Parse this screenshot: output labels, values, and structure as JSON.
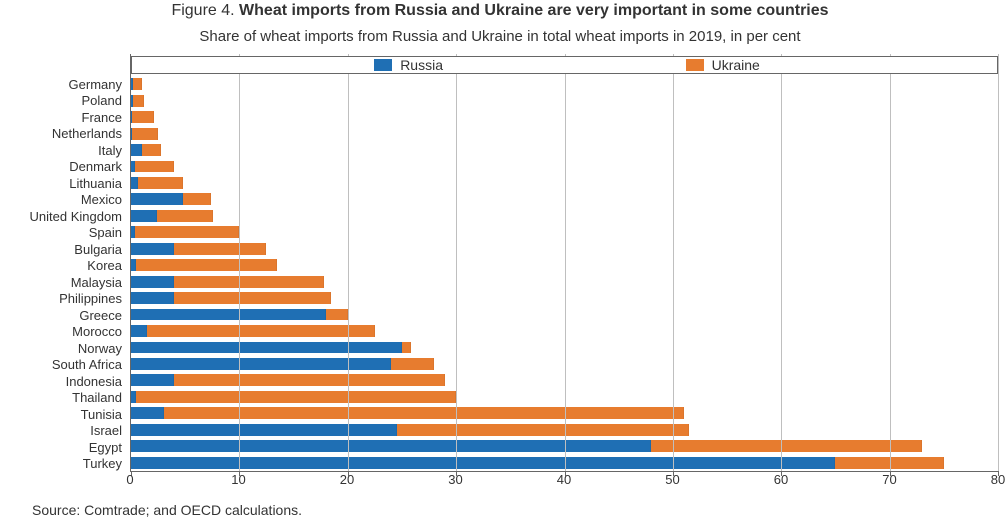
{
  "figure_label": "Figure 4.",
  "figure_title": "Wheat imports from Russia and Ukraine are very important in some countries",
  "subtitle": "Share of wheat imports from Russia and Ukraine in total wheat imports in 2019, in per cent",
  "source": "Source: Comtrade; and OECD calculations.",
  "chart": {
    "type": "stacked-horizontal-bar",
    "xlim": [
      0,
      80
    ],
    "xtick_step": 10,
    "xticks": [
      0,
      10,
      20,
      30,
      40,
      50,
      60,
      70,
      80
    ],
    "background_color": "#ffffff",
    "grid_color": "#bfbfbf",
    "axis_color": "#666666",
    "label_fontsize": 13,
    "title_fontsize": 16,
    "bar_height_ratio": 0.72,
    "series": [
      {
        "key": "russia",
        "label": "Russia",
        "color": "#1f6fb4"
      },
      {
        "key": "ukraine",
        "label": "Ukraine",
        "color": "#e77c2f"
      }
    ],
    "legend": {
      "position": "top-inside",
      "border_color": "#666666"
    },
    "categories": [
      {
        "label": "Germany",
        "russia": 0.2,
        "ukraine": 0.8
      },
      {
        "label": "Poland",
        "russia": 0.2,
        "ukraine": 1.0
      },
      {
        "label": "France",
        "russia": 0.0,
        "ukraine": 2.0
      },
      {
        "label": "Netherlands",
        "russia": 0.0,
        "ukraine": 2.4
      },
      {
        "label": "Italy",
        "russia": 1.0,
        "ukraine": 1.8
      },
      {
        "label": "Denmark",
        "russia": 0.4,
        "ukraine": 3.6
      },
      {
        "label": "Lithuania",
        "russia": 0.6,
        "ukraine": 4.2
      },
      {
        "label": "Mexico",
        "russia": 4.8,
        "ukraine": 2.6
      },
      {
        "label": "United Kingdom",
        "russia": 2.4,
        "ukraine": 5.2
      },
      {
        "label": "Spain",
        "russia": 0.4,
        "ukraine": 9.6
      },
      {
        "label": "Bulgaria",
        "russia": 4.0,
        "ukraine": 8.5
      },
      {
        "label": "Korea",
        "russia": 0.5,
        "ukraine": 13.0
      },
      {
        "label": "Malaysia",
        "russia": 4.0,
        "ukraine": 13.8
      },
      {
        "label": "Philippines",
        "russia": 4.0,
        "ukraine": 14.5
      },
      {
        "label": "Greece",
        "russia": 18.0,
        "ukraine": 2.0
      },
      {
        "label": "Morocco",
        "russia": 1.5,
        "ukraine": 21.0
      },
      {
        "label": "Norway",
        "russia": 25.0,
        "ukraine": 0.8
      },
      {
        "label": "South Africa",
        "russia": 24.0,
        "ukraine": 4.0
      },
      {
        "label": "Indonesia",
        "russia": 4.0,
        "ukraine": 25.0
      },
      {
        "label": "Thailand",
        "russia": 0.5,
        "ukraine": 29.5
      },
      {
        "label": "Tunisia",
        "russia": 3.0,
        "ukraine": 48.0
      },
      {
        "label": "Israel",
        "russia": 24.5,
        "ukraine": 27.0
      },
      {
        "label": "Egypt",
        "russia": 48.0,
        "ukraine": 25.0
      },
      {
        "label": "Turkey",
        "russia": 65.0,
        "ukraine": 10.0
      }
    ]
  }
}
